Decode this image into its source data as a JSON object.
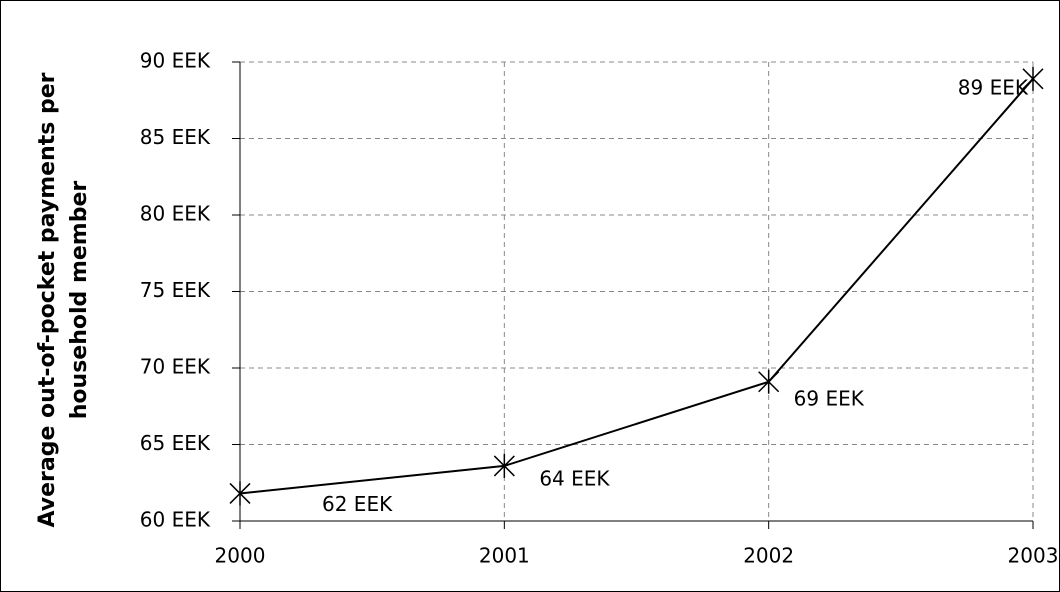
{
  "chart_data": {
    "type": "line",
    "ylabel": [
      "Average out-of-pocket payments per",
      "household member"
    ],
    "x": [
      2000,
      2001,
      2002,
      2003
    ],
    "series": [
      {
        "color": "#000000",
        "values": [
          61.8,
          63.6,
          69.1,
          88.9
        ],
        "value_labels": [
          "62 EEK",
          "64 EEK",
          "69 EEK",
          "89 EEK"
        ]
      }
    ],
    "xlim": [
      2000,
      2003
    ],
    "xticks": [
      2000,
      2001,
      2002,
      2003
    ],
    "ylim": [
      60,
      90
    ],
    "yticks": [
      {
        "value": 60,
        "label": "60 EEK"
      },
      {
        "value": 65,
        "label": "65 EEK"
      },
      {
        "value": 70,
        "label": "70 EEK"
      },
      {
        "value": 75,
        "label": "75 EEK"
      },
      {
        "value": 80,
        "label": "80 EEK"
      },
      {
        "value": 85,
        "label": "85 EEK"
      },
      {
        "value": 90,
        "label": "90 EEK"
      }
    ],
    "grid": true
  }
}
